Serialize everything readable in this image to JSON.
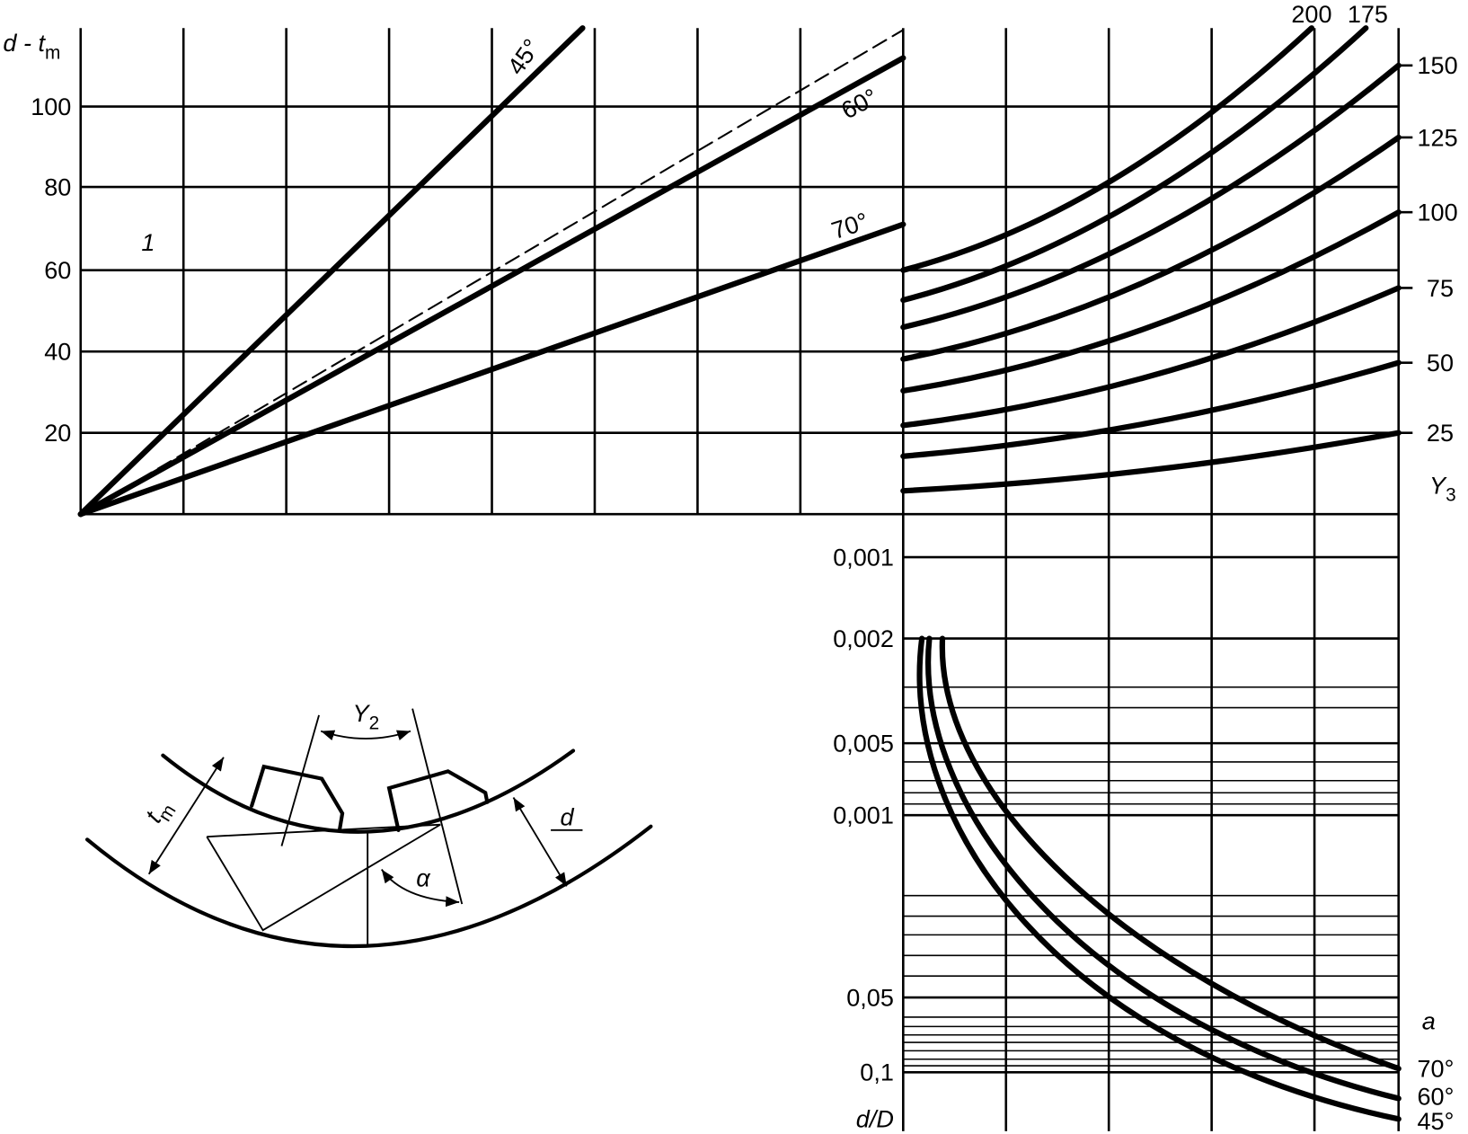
{
  "top_chart": {
    "y_axis_label": {
      "main": "d - t",
      "sub": "m"
    },
    "y_ticks": [
      "100",
      "80",
      "60",
      "40",
      "20"
    ],
    "panel_number": "1",
    "line_labels": [
      "45°",
      "60°",
      "70°"
    ]
  },
  "right_chart": {
    "top_labels": [
      "200",
      "175"
    ],
    "y3_ticks": [
      "150",
      "125",
      "100",
      "75",
      "50",
      "25"
    ],
    "axis_label": {
      "main": "Y",
      "sub": "3"
    }
  },
  "bottom_chart": {
    "ticks": [
      "0,001",
      "0,002",
      "0,005",
      "0,001",
      "0,05",
      "0,1"
    ],
    "axis_label": "d/D",
    "curve_axis_label": "a",
    "curve_labels": [
      "70°",
      "60°",
      "45°"
    ]
  },
  "sketch": {
    "y2": {
      "main": "Y",
      "sub": "2"
    },
    "tm": {
      "main": "t",
      "sub": "m"
    },
    "d": "d",
    "alpha": "α"
  }
}
